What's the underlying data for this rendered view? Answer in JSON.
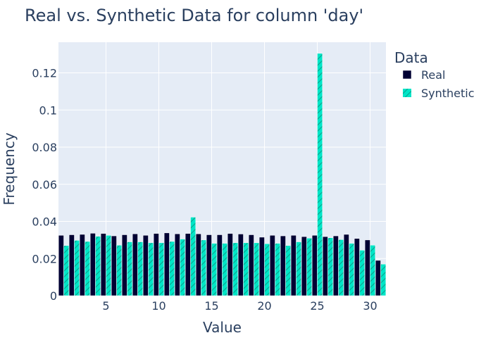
{
  "chart_data": {
    "type": "bar",
    "title": "Real vs. Synthetic Data for column 'day'",
    "xlabel": "Value",
    "ylabel": "Frequency",
    "legend_title": "Data",
    "legend_position": "right",
    "grid": true,
    "x": [
      1,
      2,
      3,
      4,
      5,
      6,
      7,
      8,
      9,
      10,
      11,
      12,
      13,
      14,
      15,
      16,
      17,
      18,
      19,
      20,
      21,
      22,
      23,
      24,
      25,
      26,
      27,
      28,
      29,
      30,
      31
    ],
    "xlim": [
      0.5,
      31.5
    ],
    "ylim": [
      0,
      0.1365
    ],
    "x_ticks": [
      5,
      10,
      15,
      20,
      25,
      30
    ],
    "y_ticks": [
      0,
      0.02,
      0.04,
      0.06,
      0.08,
      0.1,
      0.12
    ],
    "y_tick_labels": [
      "0",
      "0.02",
      "0.04",
      "0.06",
      "0.08",
      "0.1",
      "0.12"
    ],
    "series": [
      {
        "name": "Real",
        "color": "#000033",
        "pattern": "solid",
        "values": [
          0.0325,
          0.0328,
          0.033,
          0.0336,
          0.0335,
          0.0322,
          0.0328,
          0.0333,
          0.0325,
          0.0335,
          0.0338,
          0.0333,
          0.0335,
          0.0333,
          0.0328,
          0.0328,
          0.0335,
          0.0332,
          0.0328,
          0.0315,
          0.0325,
          0.0322,
          0.0325,
          0.0318,
          0.0325,
          0.0318,
          0.0322,
          0.033,
          0.0308,
          0.03,
          0.019
        ]
      },
      {
        "name": "Synthetic",
        "color": "#00e5c7",
        "pattern": "diagonal-hatch",
        "values": [
          0.027,
          0.0298,
          0.0292,
          0.032,
          0.0325,
          0.0272,
          0.029,
          0.029,
          0.0285,
          0.0285,
          0.0292,
          0.0305,
          0.0423,
          0.03,
          0.0282,
          0.0282,
          0.0285,
          0.0285,
          0.0285,
          0.028,
          0.0282,
          0.027,
          0.029,
          0.031,
          0.1305,
          0.0312,
          0.0302,
          0.0282,
          0.0245,
          0.0272,
          0.017
        ]
      }
    ]
  }
}
